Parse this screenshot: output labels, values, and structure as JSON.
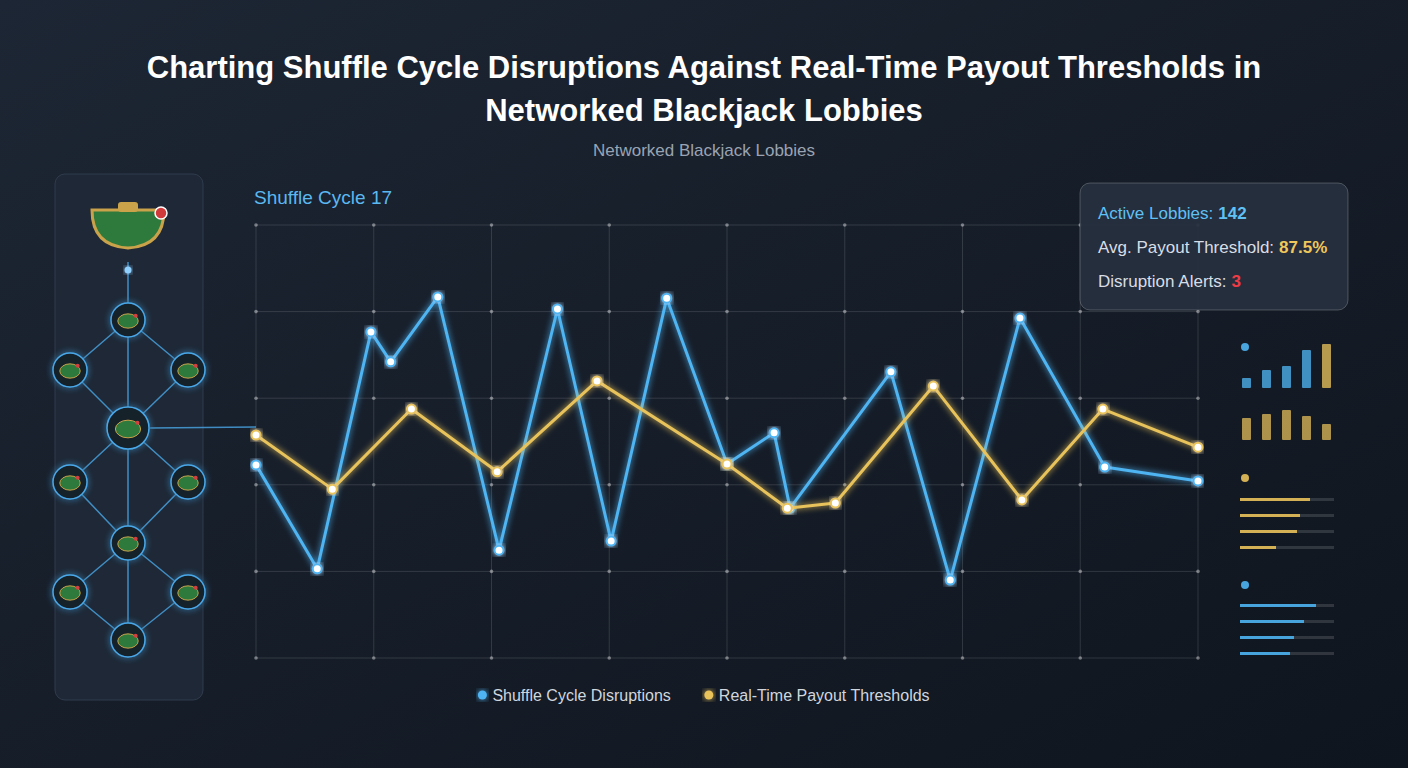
{
  "chart_data": {
    "type": "line",
    "title": "Charting Shuffle Cycle Disruptions Against Real-Time Payout Thresholds in Networked Blackjack Lobbies",
    "subtitle": "Networked Blackjack Lobbies",
    "annotation": "Shuffle Cycle 17",
    "xlim": [
      0,
      100
    ],
    "xticks": [
      0,
      12.5,
      25,
      37.5,
      50,
      62.5,
      75,
      87.5,
      100
    ],
    "ylim": [
      0,
      100
    ],
    "yticks": [
      0,
      20,
      40,
      60,
      80,
      100
    ],
    "grid": true,
    "tick_labels": false,
    "legend": "bottom",
    "marker": "circle",
    "series": [
      {
        "name": "Shuffle Cycle Disruptions",
        "color": "#4fb4f2",
        "x": [
          0,
          6.5,
          12.2,
          14.3,
          19.3,
          25.8,
          32.0,
          37.7,
          43.6,
          50.0,
          55.0,
          56.7,
          67.4,
          73.7,
          81.1,
          90.1,
          100
        ],
        "values": [
          44.6,
          20.6,
          75.3,
          68.4,
          83.4,
          24.9,
          80.6,
          27.0,
          83.1,
          44.8,
          52.0,
          34.6,
          66.1,
          18.0,
          78.5,
          44.1,
          40.9
        ]
      },
      {
        "name": "Real-Time Payout Thresholds",
        "color": "#e8c25a",
        "x": [
          0,
          8.1,
          16.5,
          25.6,
          36.2,
          50.0,
          56.4,
          61.5,
          71.9,
          81.3,
          89.9,
          100
        ],
        "values": [
          51.5,
          39.0,
          57.5,
          43.0,
          64.0,
          44.8,
          34.6,
          35.8,
          62.8,
          36.5,
          57.5,
          48.7
        ]
      }
    ],
    "stats": [
      {
        "label": "Active Lobbies:",
        "value": "142",
        "color": "#5fc0f5"
      },
      {
        "label": "Avg. Payout Threshold:",
        "value": "87.5%",
        "color": "#f0c75a"
      },
      {
        "label": "Disruption Alerts:",
        "value": "3",
        "color": "#ee3b45"
      }
    ]
  }
}
